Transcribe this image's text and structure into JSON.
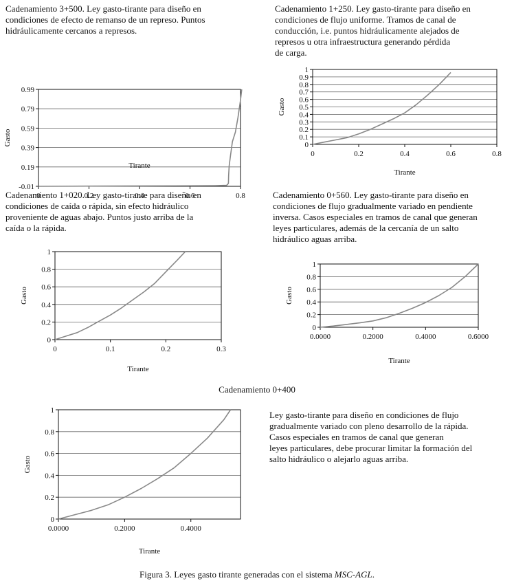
{
  "panels": [
    {
      "description": "Cadenamiento 3+500. Ley gasto-tirante para diseño en\ncondiciones de efecto de remanso de un represo. Puntos\nhidráulicamente cercanos a represos.",
      "chart_data": {
        "type": "line",
        "xlabel": "Tirante",
        "ylabel": "Gasto",
        "xlim": [
          0,
          0.8
        ],
        "ylim": [
          -0.01,
          0.99
        ],
        "xticks": [
          0,
          0.2,
          0.4,
          0.6,
          0.8
        ],
        "xtick_labels": [
          "0",
          "0.2",
          "0.4",
          "0.6",
          "0.8"
        ],
        "yticks": [
          -0.01,
          0.19,
          0.39,
          0.59,
          0.79,
          0.99
        ],
        "ytick_labels": [
          "-0.01",
          "0.19",
          "0.39",
          "0.59",
          "0.79",
          "0.99"
        ],
        "grid": true,
        "series": [
          {
            "x": [
              0,
              0.2,
              0.4,
              0.6,
              0.7,
              0.745,
              0.752,
              0.753,
              0.755,
              0.76,
              0.768,
              0.78,
              0.79,
              0.8,
              0.805
            ],
            "y": [
              -0.01,
              -0.008,
              -0.006,
              -0.004,
              -0.003,
              0.0,
              0.02,
              0.1,
              0.2,
              0.3,
              0.45,
              0.55,
              0.7,
              0.88,
              0.99
            ]
          }
        ]
      }
    },
    {
      "description": "Cadenamiento 1+250. Ley gasto-tirante para diseño en\ncondiciones de flujo uniforme. Tramos de canal de\nconducción, i.e. puntos hidráulicamente alejados de\nrepresos u otra infraestructura generando pérdida\nde carga.",
      "chart_data": {
        "type": "line",
        "xlabel": "Tirante",
        "ylabel": "Gasto",
        "xlim": [
          0,
          0.8
        ],
        "ylim": [
          0,
          1
        ],
        "xticks": [
          0,
          0.2,
          0.4,
          0.6,
          0.8
        ],
        "xtick_labels": [
          "0",
          "0.2",
          "0.4",
          "0.6",
          "0.8"
        ],
        "yticks": [
          0,
          0.1,
          0.2,
          0.3,
          0.4,
          0.5,
          0.6,
          0.7,
          0.8,
          0.9,
          1
        ],
        "ytick_labels": [
          "0",
          "0.1",
          "0.2",
          "0.3",
          "0.4",
          "0.5",
          "0.6",
          "0.7",
          "0.8",
          "0.9",
          "1"
        ],
        "grid": true,
        "series": [
          {
            "x": [
              0,
              0.05,
              0.1,
              0.15,
              0.2,
              0.25,
              0.3,
              0.35,
              0.4,
              0.45,
              0.5,
              0.55,
              0.6
            ],
            "y": [
              0,
              0.03,
              0.06,
              0.09,
              0.14,
              0.2,
              0.27,
              0.34,
              0.42,
              0.53,
              0.66,
              0.8,
              0.96
            ]
          }
        ]
      }
    },
    {
      "description": "Cadenamiento 1+020. Ley gasto-tirante para diseño en\ncondiciones de caída o rápida, sin efecto hidráulico\nproveniente de aguas abajo. Puntos justo arriba de la\ncaída o la rápida.",
      "chart_data": {
        "type": "line",
        "xlabel": "Tirante",
        "ylabel": "Gasto",
        "xlim": [
          0,
          0.3
        ],
        "ylim": [
          0,
          1
        ],
        "xticks": [
          0,
          0.1,
          0.2,
          0.3
        ],
        "xtick_labels": [
          "0",
          "0.1",
          "0.2",
          "0.3"
        ],
        "yticks": [
          0,
          0.2,
          0.4,
          0.6,
          0.8,
          1
        ],
        "ytick_labels": [
          "0",
          "0.2",
          "0.4",
          "0.6",
          "0.8",
          "1"
        ],
        "grid": true,
        "series": [
          {
            "x": [
              0,
              0.02,
              0.04,
              0.06,
              0.08,
              0.1,
              0.12,
              0.14,
              0.16,
              0.18,
              0.2,
              0.22,
              0.235
            ],
            "y": [
              0,
              0.04,
              0.08,
              0.14,
              0.21,
              0.28,
              0.36,
              0.45,
              0.54,
              0.64,
              0.77,
              0.9,
              1.0
            ]
          }
        ]
      }
    },
    {
      "description": "Cadenamiento 0+560. Ley gasto-tirante para diseño en\ncondiciones de flujo gradualmente variado en pendiente\ninversa. Casos especiales en tramos de canal que generan\nleyes particulares, además de la cercanía de un salto\nhidráulico aguas arriba.",
      "chart_data": {
        "type": "line",
        "xlabel": "Tirante",
        "ylabel": "Gasto",
        "xlim": [
          0,
          0.6
        ],
        "ylim": [
          0,
          1
        ],
        "xticks": [
          0,
          0.2,
          0.4,
          0.6
        ],
        "xtick_labels": [
          "0.0000",
          "0.2000",
          "0.4000",
          "0.6000"
        ],
        "yticks": [
          0,
          0.2,
          0.4,
          0.6,
          0.8,
          1
        ],
        "ytick_labels": [
          "0",
          "0.2",
          "0.4",
          "0.6",
          "0.8",
          "1"
        ],
        "grid": true,
        "series": [
          {
            "x": [
              0,
              0.05,
              0.1,
              0.15,
              0.2,
              0.25,
              0.3,
              0.35,
              0.4,
              0.45,
              0.5,
              0.55,
              0.6
            ],
            "y": [
              0,
              0.02,
              0.045,
              0.07,
              0.1,
              0.15,
              0.22,
              0.3,
              0.39,
              0.5,
              0.63,
              0.8,
              1.0
            ]
          }
        ]
      }
    },
    {
      "title": "Cadenamiento 0+400",
      "description": "Ley gasto-tirante para diseño en condiciones de flujo\ngradualmente variado con pleno desarrollo de la rápida.\nCasos especiales en tramos de canal que generan\nleyes particulares, debe procurar limitar la formación del\nsalto hidráulico o alejarlo aguas arriba.",
      "chart_data": {
        "type": "line",
        "xlabel": "Tirante",
        "ylabel": "Gasto",
        "xlim": [
          0,
          0.55
        ],
        "ylim": [
          0,
          1
        ],
        "xticks": [
          0,
          0.2,
          0.4
        ],
        "xtick_labels": [
          "0.0000",
          "0.2000",
          "0.4000"
        ],
        "yticks": [
          0,
          0.2,
          0.4,
          0.6,
          0.8,
          1
        ],
        "ytick_labels": [
          "0",
          "0.2",
          "0.4",
          "0.6",
          "0.8",
          "1"
        ],
        "grid": true,
        "series": [
          {
            "x": [
              0,
              0.05,
              0.1,
              0.15,
              0.2,
              0.25,
              0.3,
              0.35,
              0.4,
              0.45,
              0.5,
              0.52
            ],
            "y": [
              0,
              0.04,
              0.08,
              0.13,
              0.2,
              0.28,
              0.37,
              0.47,
              0.6,
              0.74,
              0.91,
              1.0
            ]
          }
        ]
      }
    }
  ],
  "caption_prefix": "Figura 3. Leyes gasto tirante generadas con el sistema ",
  "caption_system": "MSC-AGL",
  "caption_suffix": "."
}
